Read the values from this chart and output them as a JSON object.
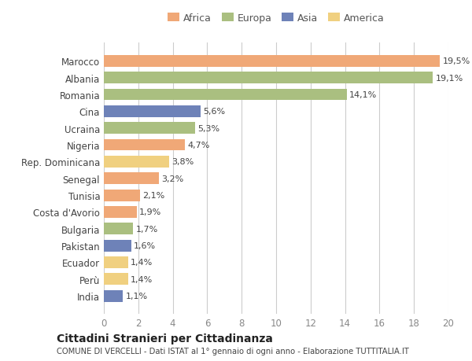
{
  "countries": [
    "Marocco",
    "Albania",
    "Romania",
    "Cina",
    "Ucraina",
    "Nigeria",
    "Rep. Dominicana",
    "Senegal",
    "Tunisia",
    "Costa d'Avorio",
    "Bulgaria",
    "Pakistan",
    "Ecuador",
    "Perù",
    "India"
  ],
  "values": [
    19.5,
    19.1,
    14.1,
    5.6,
    5.3,
    4.7,
    3.8,
    3.2,
    2.1,
    1.9,
    1.7,
    1.6,
    1.4,
    1.4,
    1.1
  ],
  "labels": [
    "19,5%",
    "19,1%",
    "14,1%",
    "5,6%",
    "5,3%",
    "4,7%",
    "3,8%",
    "3,2%",
    "2,1%",
    "1,9%",
    "1,7%",
    "1,6%",
    "1,4%",
    "1,4%",
    "1,1%"
  ],
  "continents": [
    "Africa",
    "Europa",
    "Europa",
    "Asia",
    "Europa",
    "Africa",
    "America",
    "Africa",
    "Africa",
    "Africa",
    "Europa",
    "Asia",
    "America",
    "America",
    "Asia"
  ],
  "colors": {
    "Africa": "#F0A877",
    "Europa": "#AABF80",
    "Asia": "#6E82B8",
    "America": "#F0D080"
  },
  "legend_colors": {
    "Africa": "#F0A877",
    "Europa": "#AABF80",
    "Asia": "#6E82B8",
    "America": "#F0D080"
  },
  "title": "Cittadini Stranieri per Cittadinanza",
  "subtitle": "COMUNE DI VERCELLI - Dati ISTAT al 1° gennaio di ogni anno - Elaborazione TUTTITALIA.IT",
  "xlim": [
    0,
    20
  ],
  "xticks": [
    0,
    2,
    4,
    6,
    8,
    10,
    12,
    14,
    16,
    18,
    20
  ],
  "background_color": "#ffffff",
  "grid_color": "#cccccc"
}
